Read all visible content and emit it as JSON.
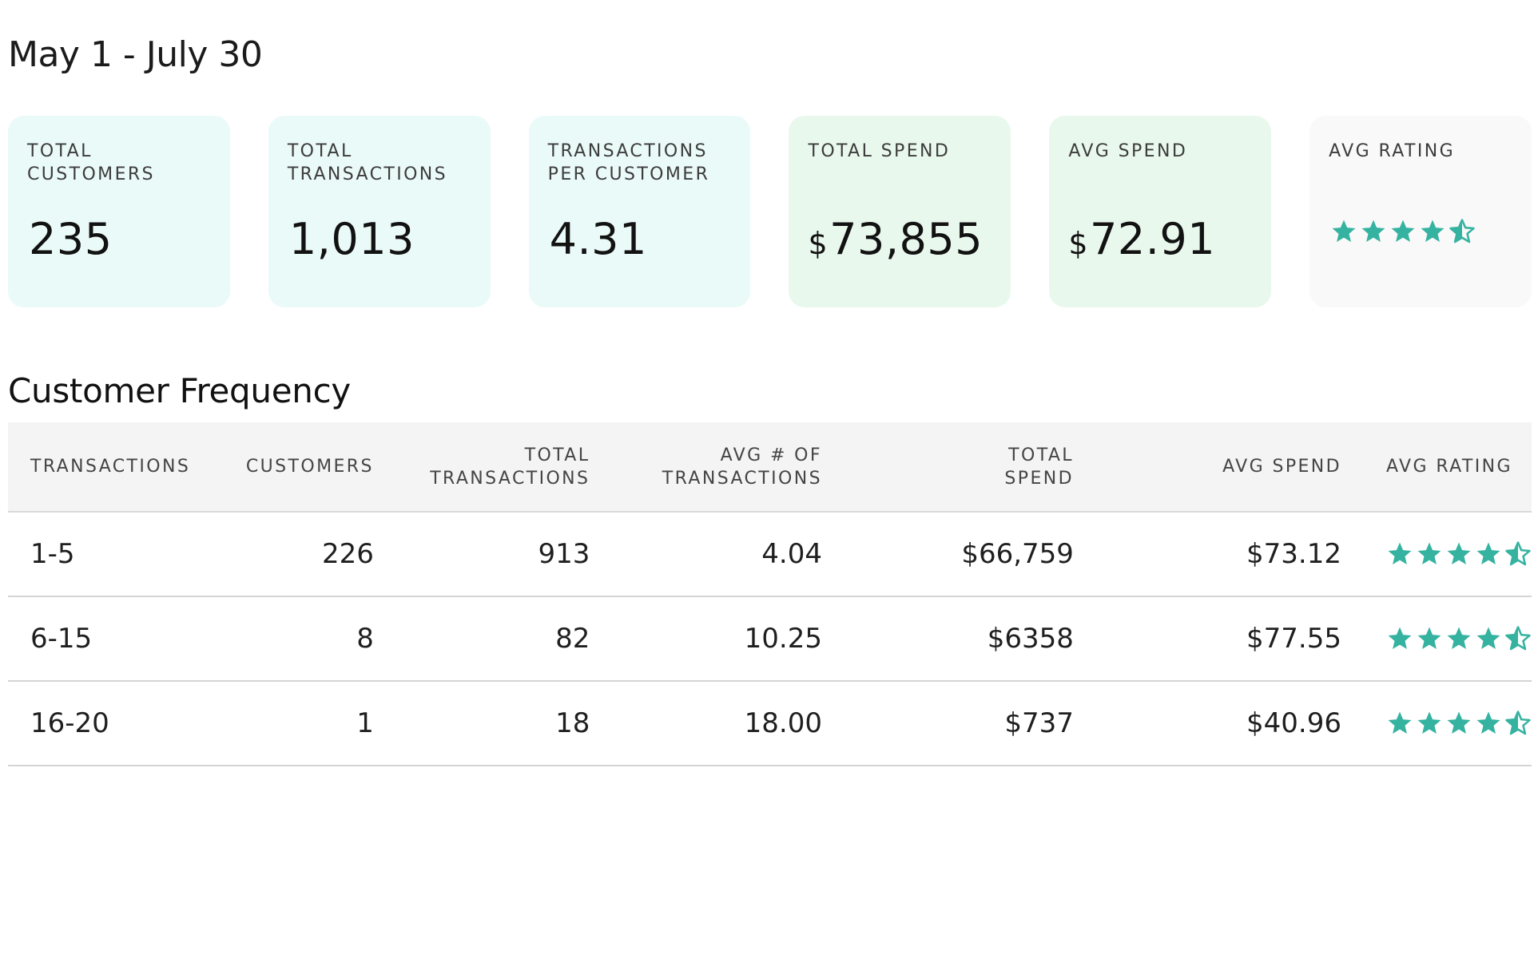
{
  "header": {
    "date_range": "May 1 - July 30"
  },
  "summary_cards": [
    {
      "label": "TOTAL CUSTOMERS",
      "value": "235",
      "currency": "",
      "theme": "teal"
    },
    {
      "label": "TOTAL TRANSACTIONS",
      "value": "1,013",
      "currency": "",
      "theme": "teal"
    },
    {
      "label": "TRANSACTIONS PER CUSTOMER",
      "value": "4.31",
      "currency": "",
      "theme": "teal"
    },
    {
      "label": "TOTAL SPEND",
      "value": "73,855",
      "currency": "$",
      "theme": "mint"
    },
    {
      "label": "AVG SPEND",
      "value": "72.91",
      "currency": "$",
      "theme": "mint"
    },
    {
      "label": "AVG RATING",
      "rating": 4.5,
      "theme": "grey"
    }
  ],
  "frequency": {
    "title": "Customer Frequency",
    "columns": [
      "TRANSACTIONS",
      "CUSTOMERS",
      "TOTAL TRANSACTIONS",
      "AVG # OF TRANSACTIONS",
      "TOTAL SPEND",
      "AVG SPEND",
      "AVG RATING"
    ],
    "rows": [
      {
        "transactions": "1-5",
        "customers": "226",
        "total_transactions": "913",
        "avg_transactions": "4.04",
        "total_spend": "$66,759",
        "avg_spend": "$73.12",
        "rating": 4.5
      },
      {
        "transactions": "6-15",
        "customers": "8",
        "total_transactions": "82",
        "avg_transactions": "10.25",
        "total_spend": "$6358",
        "avg_spend": "$77.55",
        "rating": 4.5
      },
      {
        "transactions": "16-20",
        "customers": "1",
        "total_transactions": "18",
        "avg_transactions": "18.00",
        "total_spend": "$737",
        "avg_spend": "$40.96",
        "rating": 4.5
      }
    ]
  },
  "colors": {
    "accent": "#35b3a0",
    "card_teal": "#eafaf8",
    "card_mint": "#e9f8ed",
    "card_grey": "#f9f9f9",
    "table_header_bg": "#f3f4f3"
  },
  "icons": {
    "rating_star": "star-icon",
    "rating_half_star": "star-half-icon"
  }
}
